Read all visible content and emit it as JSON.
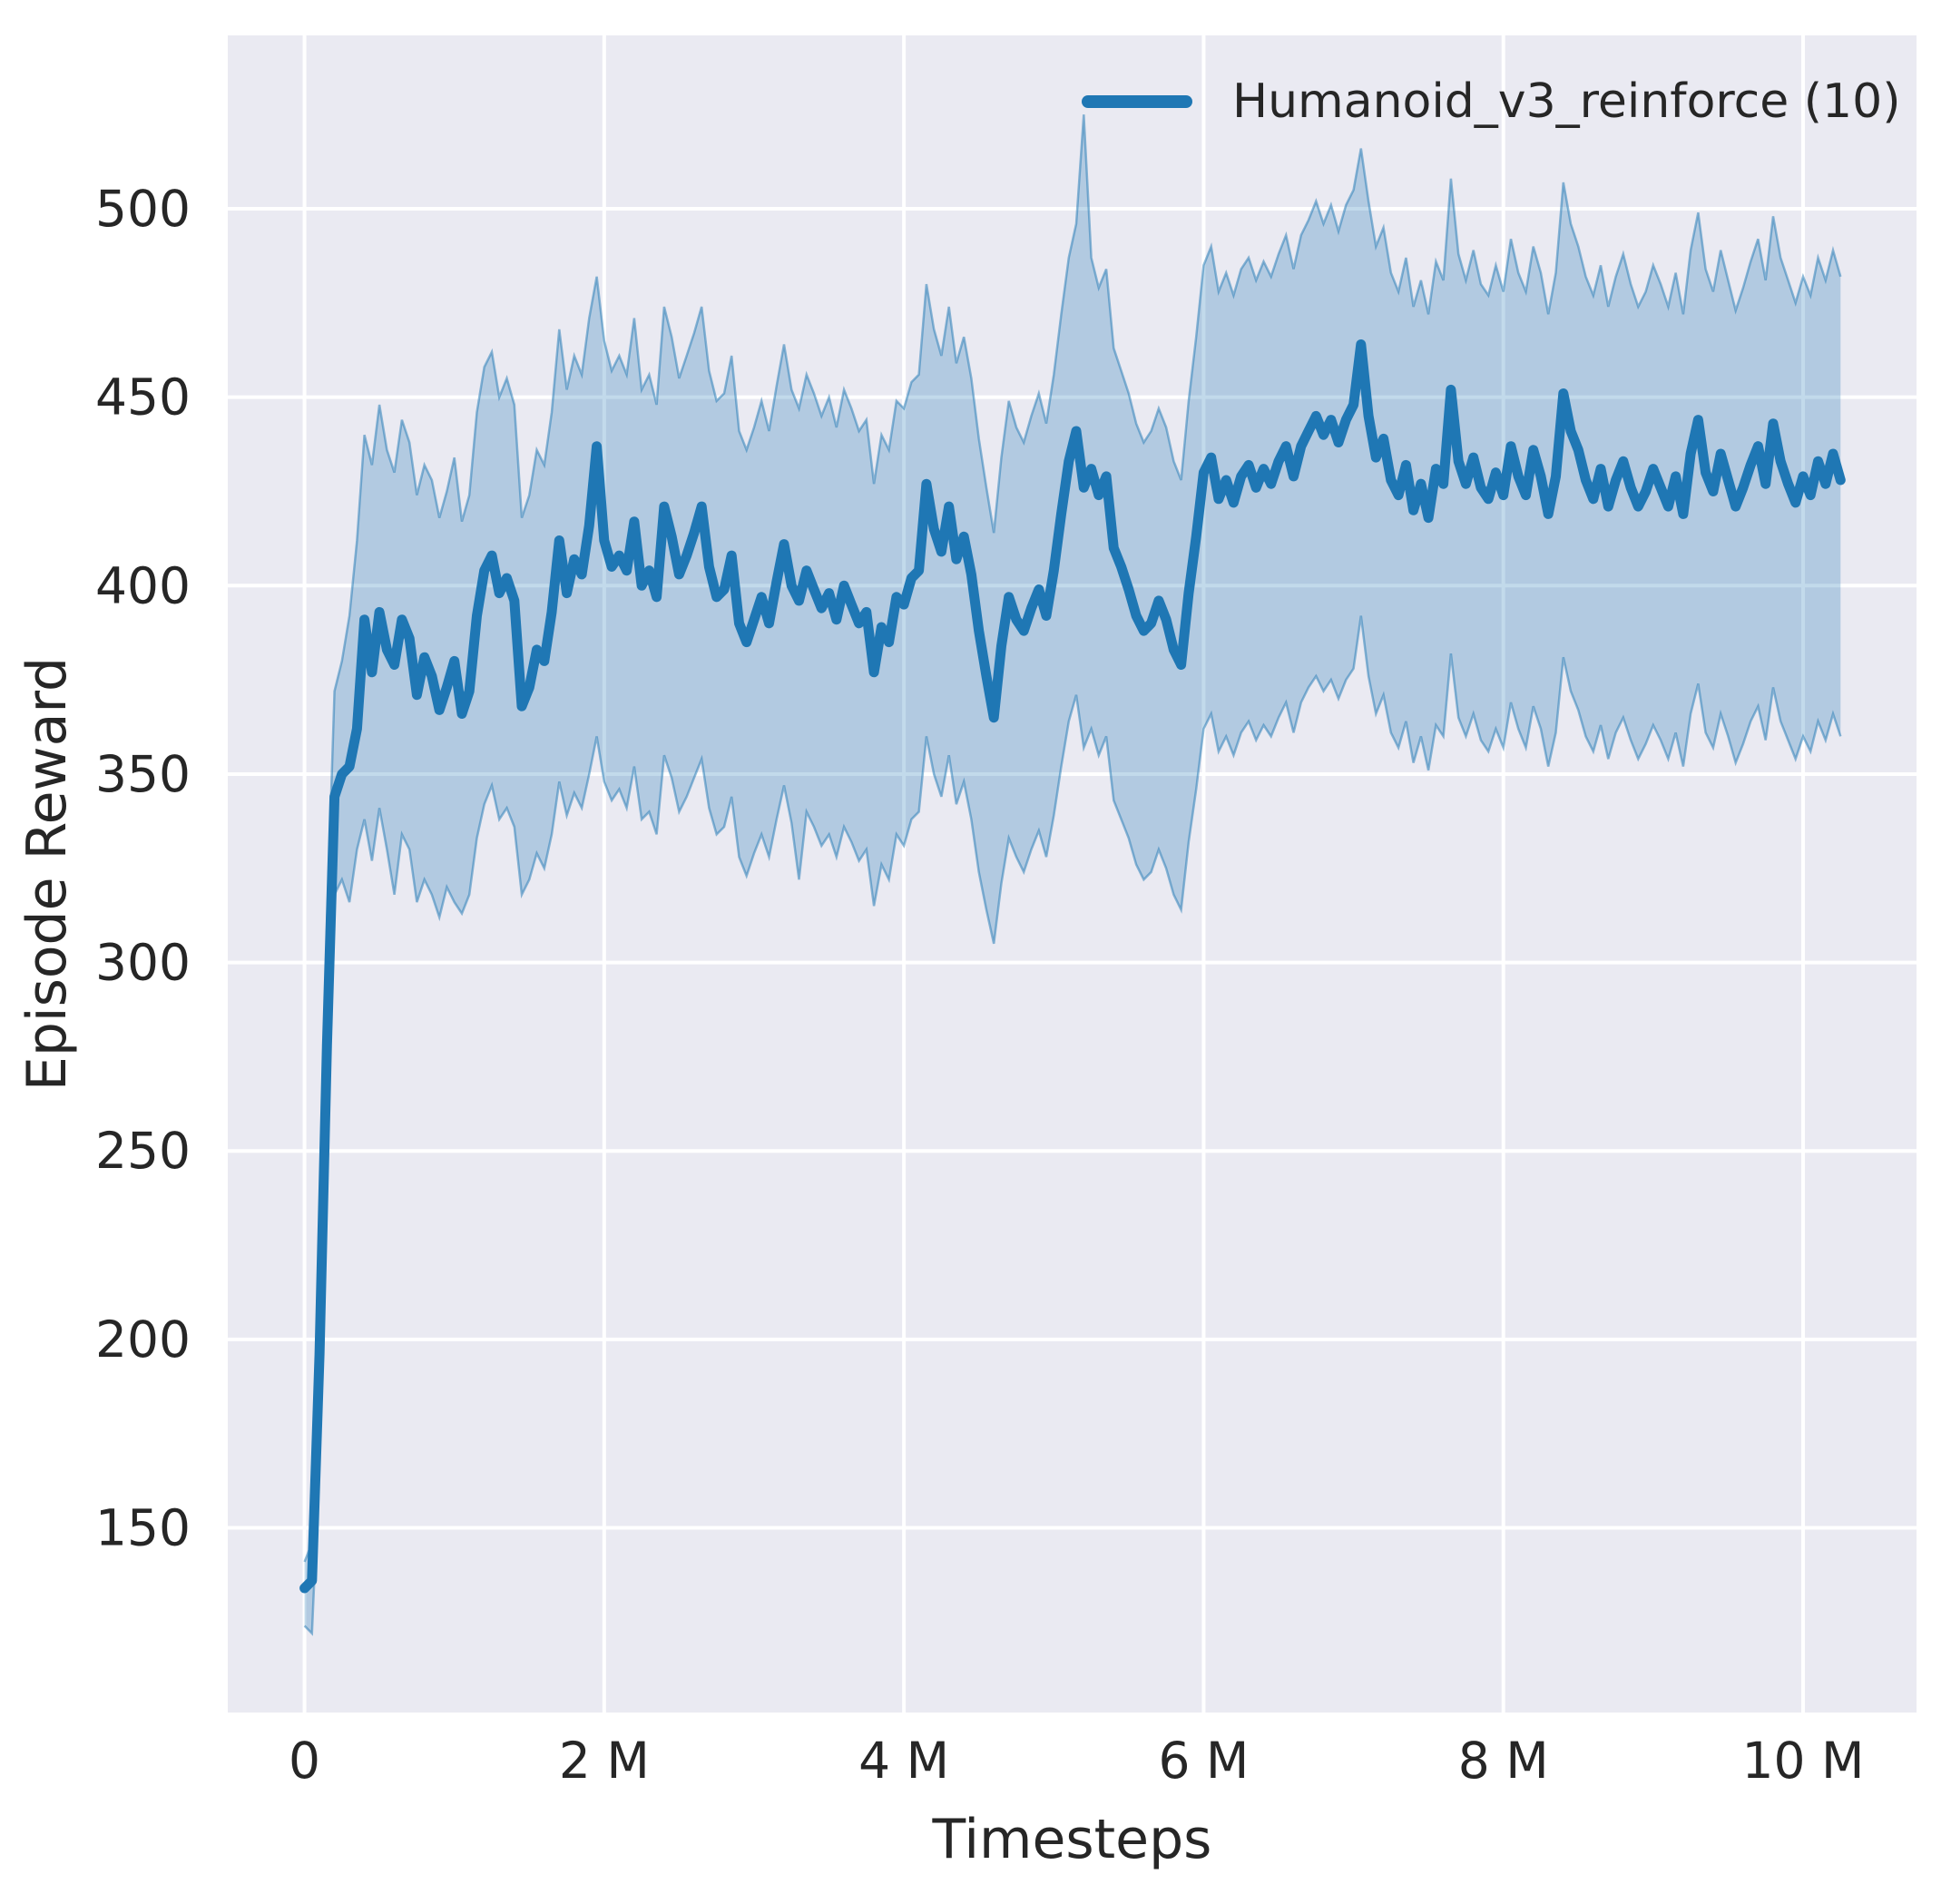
{
  "colors": {
    "line": "#1f77b4",
    "band_fill_opacity": 0.27,
    "band_edge_opacity": 0.5,
    "plot_background": "#eaeaf2",
    "grid": "#ffffff",
    "figure_background": "#ffffff",
    "text": "#262626"
  },
  "chart_data": {
    "type": "line",
    "title": "",
    "xlabel": "Timesteps",
    "ylabel": "Episode Reward",
    "legend_position": "upper right",
    "grid": true,
    "xlim_millions": [
      -0.512,
      10.757
    ],
    "ylim": [
      101,
      546
    ],
    "x_ticks": {
      "values_millions": [
        0,
        2,
        4,
        6,
        8,
        10
      ],
      "labels": [
        "0",
        "2 M",
        "4 M",
        "6 M",
        "8 M",
        "10 M"
      ]
    },
    "y_ticks": {
      "values": [
        150,
        200,
        250,
        300,
        350,
        400,
        450,
        500
      ],
      "labels": [
        "150",
        "200",
        "250",
        "300",
        "350",
        "400",
        "450",
        "500"
      ]
    },
    "x_unit": "timesteps (millions)",
    "x_start_millions": 0,
    "x_step_millions": 0.05,
    "series": [
      {
        "name": "Humanoid_v3_reinforce (10)",
        "mean": [
          134,
          136,
          196,
          278,
          344,
          350,
          352,
          362,
          391,
          377,
          393,
          383,
          379,
          391,
          386,
          371,
          381,
          376,
          367,
          373,
          380,
          366,
          372,
          392,
          404,
          408,
          398,
          402,
          396,
          368,
          373,
          383,
          380,
          393,
          412,
          398,
          407,
          403,
          416,
          437,
          412,
          405,
          408,
          404,
          417,
          400,
          404,
          397,
          421,
          413,
          403,
          408,
          414,
          421,
          405,
          397,
          399,
          408,
          390,
          385,
          391,
          397,
          390,
          401,
          411,
          400,
          396,
          404,
          399,
          394,
          398,
          391,
          400,
          395,
          390,
          393,
          377,
          389,
          385,
          397,
          395,
          402,
          404,
          427,
          415,
          409,
          421,
          407,
          413,
          403,
          388,
          376,
          365,
          384,
          397,
          391,
          388,
          394,
          399,
          392,
          404,
          419,
          433,
          441,
          426,
          431,
          424,
          429,
          410,
          405,
          399,
          392,
          388,
          390,
          396,
          391,
          383,
          379,
          398,
          413,
          430,
          434,
          423,
          428,
          422,
          429,
          432,
          426,
          431,
          427,
          433,
          437,
          429,
          437,
          441,
          445,
          440,
          444,
          438,
          444,
          448,
          464,
          445,
          434,
          439,
          428,
          424,
          432,
          420,
          427,
          418,
          431,
          427,
          452,
          433,
          427,
          434,
          426,
          423,
          430,
          424,
          437,
          429,
          424,
          436,
          429,
          419,
          429,
          451,
          441,
          436,
          428,
          423,
          431,
          421,
          428,
          433,
          426,
          421,
          425,
          431,
          426,
          421,
          429,
          419,
          435,
          444,
          430,
          425,
          435,
          428,
          421,
          426,
          432,
          437,
          427,
          443,
          433,
          427,
          422,
          429,
          424,
          433,
          427,
          435,
          428
        ],
        "band_lower": [
          124,
          122,
          168,
          248,
          318,
          322,
          316,
          330,
          338,
          327,
          341,
          330,
          318,
          334,
          330,
          316,
          322,
          318,
          312,
          320,
          316,
          313,
          318,
          333,
          342,
          347,
          338,
          341,
          336,
          318,
          322,
          329,
          325,
          334,
          348,
          339,
          345,
          341,
          350,
          360,
          348,
          343,
          346,
          341,
          352,
          338,
          340,
          334,
          355,
          349,
          340,
          344,
          349,
          354,
          341,
          334,
          336,
          344,
          328,
          323,
          329,
          334,
          328,
          338,
          347,
          337,
          322,
          340,
          336,
          331,
          334,
          328,
          336,
          332,
          327,
          330,
          315,
          326,
          322,
          334,
          331,
          338,
          340,
          360,
          350,
          344,
          355,
          342,
          348,
          338,
          324,
          314,
          305,
          321,
          333,
          328,
          324,
          330,
          335,
          328,
          339,
          352,
          364,
          371,
          357,
          362,
          355,
          360,
          343,
          338,
          333,
          326,
          322,
          324,
          330,
          325,
          318,
          314,
          332,
          346,
          362,
          366,
          356,
          360,
          355,
          361,
          364,
          359,
          363,
          360,
          365,
          369,
          361,
          369,
          373,
          376,
          372,
          375,
          370,
          375,
          378,
          392,
          376,
          366,
          371,
          361,
          357,
          364,
          353,
          360,
          351,
          363,
          360,
          382,
          365,
          360,
          366,
          359,
          356,
          362,
          357,
          369,
          362,
          357,
          368,
          362,
          352,
          361,
          381,
          372,
          367,
          360,
          356,
          363,
          354,
          361,
          365,
          359,
          354,
          358,
          363,
          359,
          354,
          361,
          352,
          366,
          374,
          361,
          357,
          366,
          360,
          353,
          358,
          364,
          368,
          359,
          373,
          364,
          359,
          354,
          360,
          356,
          364,
          359,
          366,
          360
        ],
        "band_upper": [
          141,
          146,
          225,
          310,
          372,
          380,
          392,
          412,
          440,
          432,
          448,
          436,
          430,
          444,
          438,
          424,
          432,
          428,
          418,
          425,
          434,
          417,
          424,
          446,
          458,
          462,
          450,
          455,
          448,
          418,
          424,
          436,
          432,
          446,
          468,
          452,
          461,
          456,
          471,
          482,
          465,
          457,
          461,
          456,
          471,
          452,
          456,
          448,
          474,
          466,
          455,
          461,
          467,
          474,
          457,
          449,
          451,
          461,
          441,
          436,
          442,
          449,
          441,
          453,
          464,
          452,
          447,
          456,
          451,
          445,
          450,
          442,
          452,
          447,
          441,
          444,
          427,
          440,
          436,
          449,
          447,
          454,
          456,
          480,
          468,
          461,
          474,
          459,
          466,
          455,
          439,
          426,
          414,
          434,
          449,
          442,
          438,
          445,
          451,
          443,
          456,
          472,
          487,
          496,
          525,
          487,
          479,
          484,
          463,
          457,
          451,
          443,
          438,
          441,
          447,
          442,
          433,
          428,
          449,
          466,
          485,
          490,
          478,
          483,
          477,
          484,
          487,
          481,
          486,
          482,
          488,
          493,
          484,
          493,
          497,
          502,
          496,
          501,
          494,
          501,
          505,
          516,
          502,
          490,
          495,
          483,
          478,
          487,
          474,
          481,
          472,
          486,
          481,
          508,
          488,
          481,
          489,
          480,
          477,
          485,
          478,
          492,
          483,
          478,
          490,
          483,
          472,
          483,
          507,
          496,
          490,
          482,
          477,
          485,
          474,
          482,
          488,
          480,
          474,
          478,
          485,
          480,
          474,
          483,
          472,
          489,
          499,
          484,
          478,
          489,
          481,
          473,
          479,
          486,
          492,
          481,
          498,
          487,
          481,
          475,
          482,
          477,
          487,
          481,
          489,
          482
        ]
      }
    ]
  }
}
